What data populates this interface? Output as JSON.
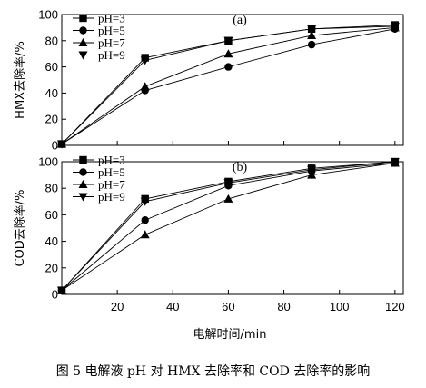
{
  "caption": "图 5   电解液 pH 对 HMX 去除率和 COD 去除率的影响",
  "x_axis_label": "电解时间/min",
  "chart_data": [
    {
      "type": "line",
      "panel_label": "(a)",
      "ylabel": "HMX去除率/%",
      "xlabel": "电解时间/min",
      "xlim": [
        0,
        123
      ],
      "ylim": [
        0,
        100
      ],
      "x_ticks": [
        20,
        40,
        60,
        80,
        100,
        120
      ],
      "y_ticks": [
        0,
        20,
        40,
        60,
        80,
        100
      ],
      "legend_position": "top-left",
      "x": [
        0,
        30,
        60,
        90,
        120
      ],
      "series": [
        {
          "name": "pH=3",
          "marker": "square",
          "values": [
            1,
            67,
            80,
            89,
            92
          ]
        },
        {
          "name": "pH=5",
          "marker": "circle",
          "values": [
            1,
            42,
            60,
            77,
            89
          ]
        },
        {
          "name": "pH=7",
          "marker": "triangle-up",
          "values": [
            1,
            45,
            70,
            84,
            90
          ]
        },
        {
          "name": "pH=9",
          "marker": "triangle-down",
          "values": [
            1,
            65,
            80,
            89,
            91
          ]
        }
      ]
    },
    {
      "type": "line",
      "panel_label": "(b)",
      "ylabel": "COD去除率/%",
      "xlabel": "电解时间/min",
      "xlim": [
        0,
        123
      ],
      "ylim": [
        0,
        100
      ],
      "x_ticks": [
        20,
        40,
        60,
        80,
        100,
        120
      ],
      "y_ticks": [
        0,
        20,
        40,
        60,
        80,
        100
      ],
      "legend_position": "top-left",
      "x": [
        0,
        30,
        60,
        90,
        120
      ],
      "series": [
        {
          "name": "pH=3",
          "marker": "square",
          "values": [
            3,
            72,
            85,
            95,
            100
          ]
        },
        {
          "name": "pH=5",
          "marker": "circle",
          "values": [
            3,
            56,
            82,
            93,
            99
          ]
        },
        {
          "name": "pH=7",
          "marker": "triangle-up",
          "values": [
            3,
            45,
            72,
            90,
            99
          ]
        },
        {
          "name": "pH=9",
          "marker": "triangle-down",
          "values": [
            3,
            70,
            84,
            94,
            100
          ]
        }
      ]
    }
  ]
}
